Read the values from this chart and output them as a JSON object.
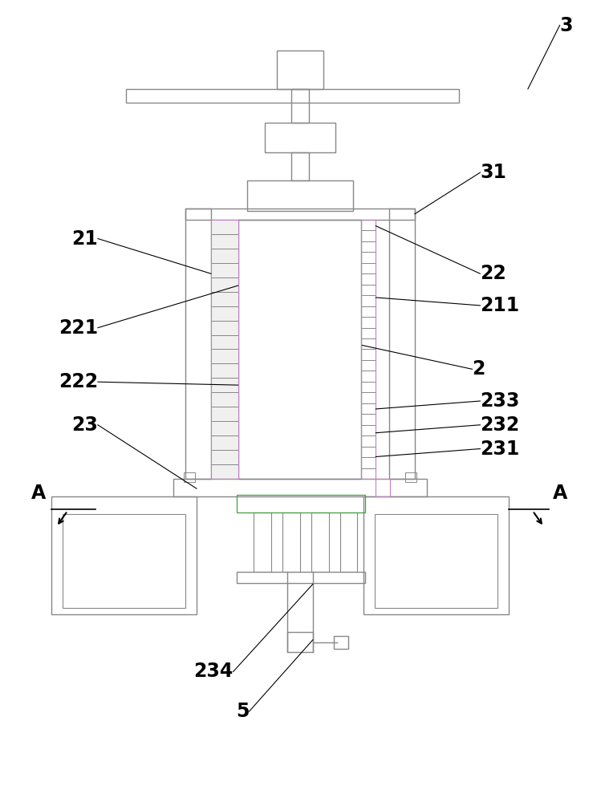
{
  "bg_color": "#ffffff",
  "lc": "#888888",
  "lc_purple": "#c080c0",
  "lc_green": "#40a040",
  "lw": 1.0,
  "figsize": [
    7.49,
    10.0
  ]
}
